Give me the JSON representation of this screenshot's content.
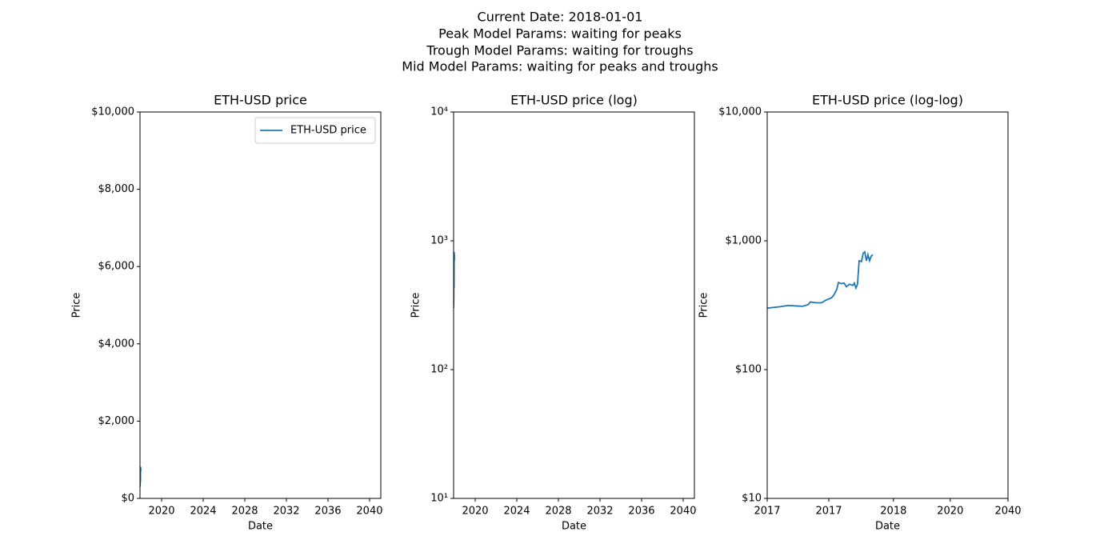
{
  "suptitle": [
    "Current Date: 2018-01-01",
    "Peak Model Params: waiting for peaks",
    "Trough Model Params: waiting for troughs",
    "Mid Model Params: waiting for peaks and troughs"
  ],
  "chart_data": [
    {
      "type": "line",
      "title": "ETH-USD price",
      "xlabel": "Date",
      "ylabel": "Price",
      "x": [
        2017.92,
        2017.9207,
        2017.9215,
        2017.9224,
        2017.9234,
        2017.9246,
        2017.9251,
        2017.9267,
        2017.9287,
        2017.9304,
        2017.9334,
        2017.9349,
        2017.9372,
        2017.9384,
        2017.9411,
        2017.9434,
        2017.946,
        2017.9497,
        2017.9541,
        2017.9564,
        2017.959,
        2017.9616,
        2017.9646,
        2017.9693,
        2017.9728,
        2017.9765,
        2017.9805,
        2017.9845,
        2017.9891,
        2017.9938,
        2017.999
      ],
      "series": [
        {
          "name": "ETH-USD price",
          "color": "#1f77b4",
          "values": [
            300,
            308,
            315,
            312,
            310,
            320,
            335,
            330,
            330,
            345,
            360,
            375,
            420,
            475,
            465,
            470,
            440,
            460,
            450,
            470,
            430,
            460,
            700,
            690,
            800,
            820,
            700,
            780,
            700,
            760,
            780
          ]
        }
      ],
      "xlim": [
        2017.92,
        2041.08
      ],
      "xticks": [
        2020,
        2024,
        2028,
        2032,
        2036,
        2040
      ],
      "ylim": [
        0,
        10000
      ],
      "yticks": [
        {
          "value": 0,
          "label": "$0"
        },
        {
          "value": 2000,
          "label": "$2,000"
        },
        {
          "value": 4000,
          "label": "$4,000"
        },
        {
          "value": 6000,
          "label": "$6,000"
        },
        {
          "value": 8000,
          "label": "$8,000"
        },
        {
          "value": 10000,
          "label": "$10,000"
        }
      ],
      "legend": "upper right"
    },
    {
      "type": "line",
      "title": "ETH-USD price (log)",
      "xlabel": "Date",
      "ylabel": "Price",
      "x": [
        2017.92,
        2017.9207,
        2017.9215,
        2017.9224,
        2017.9234,
        2017.9246,
        2017.9251,
        2017.9267,
        2017.9287,
        2017.9304,
        2017.9334,
        2017.9349,
        2017.9372,
        2017.9384,
        2017.9411,
        2017.9434,
        2017.946,
        2017.9497,
        2017.9541,
        2017.9564,
        2017.959,
        2017.9616,
        2017.9646,
        2017.9693,
        2017.9728,
        2017.9765,
        2017.9805,
        2017.9845,
        2017.9891,
        2017.9938,
        2017.999
      ],
      "series": [
        {
          "color": "#1f77b4",
          "values": [
            300,
            308,
            315,
            312,
            310,
            320,
            335,
            330,
            330,
            345,
            360,
            375,
            420,
            475,
            465,
            470,
            440,
            460,
            450,
            470,
            430,
            460,
            700,
            690,
            800,
            820,
            700,
            780,
            700,
            760,
            780
          ]
        }
      ],
      "xlim": [
        2017.92,
        2041.08
      ],
      "xticks": [
        2020,
        2024,
        2028,
        2032,
        2036,
        2040
      ],
      "ylim": [
        10,
        10000
      ],
      "ylog": true,
      "yticks": [
        {
          "value": 10,
          "label": "10¹"
        },
        {
          "value": 100,
          "label": "10²"
        },
        {
          "value": 1000,
          "label": "10³"
        },
        {
          "value": 10000,
          "label": "10⁴"
        }
      ]
    },
    {
      "type": "line",
      "title": "ETH-USD price (log-log)",
      "xlabel": "Date",
      "ylabel": "Price",
      "x": [
        1,
        1.7,
        2.4,
        3.3,
        4.3,
        5.4,
        5.9,
        7.4,
        9.4,
        11,
        13.9,
        15.3,
        17.5,
        18.7,
        21.3,
        23.5,
        26,
        29.6,
        33.8,
        36,
        38.5,
        41,
        43.9,
        48.4,
        51.8,
        55.3,
        59.2,
        63,
        67.4,
        72,
        77
      ],
      "series": [
        {
          "color": "#1f77b4",
          "values": [
            300,
            308,
            315,
            312,
            310,
            320,
            335,
            330,
            330,
            345,
            360,
            375,
            420,
            475,
            465,
            470,
            440,
            460,
            450,
            470,
            430,
            460,
            700,
            690,
            800,
            820,
            700,
            780,
            700,
            760,
            780
          ]
        }
      ],
      "xlim": [
        1,
        20000
      ],
      "xlog": true,
      "xticks": [
        {
          "value": 1,
          "label": "2017"
        },
        {
          "value": 12.6,
          "label": "2017"
        },
        {
          "value": 180,
          "label": "2018"
        },
        {
          "value": 1860,
          "label": "2020"
        },
        {
          "value": 20000,
          "label": "2040"
        }
      ],
      "ylim": [
        10,
        10000
      ],
      "ylog": true,
      "yticks": [
        {
          "value": 10,
          "label": "$10"
        },
        {
          "value": 100,
          "label": "$100"
        },
        {
          "value": 1000,
          "label": "$1,000"
        },
        {
          "value": 10000,
          "label": "$10,000"
        }
      ]
    }
  ]
}
